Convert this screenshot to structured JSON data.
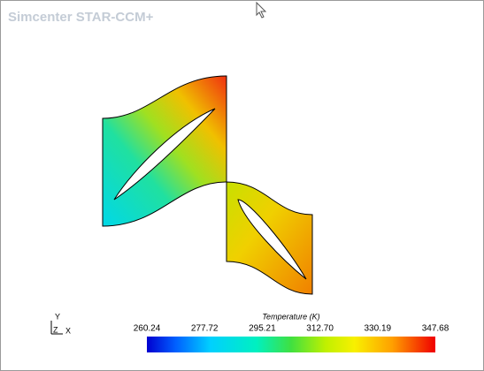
{
  "app_title": "Simcenter STAR-CCM+",
  "axes_triad": {
    "y": "Y",
    "z": "Z",
    "x": "X"
  },
  "legend": {
    "title": "Temperature (K)",
    "ticks": [
      "260.24",
      "277.72",
      "295.21",
      "312.70",
      "330.19",
      "347.68"
    ]
  }
}
